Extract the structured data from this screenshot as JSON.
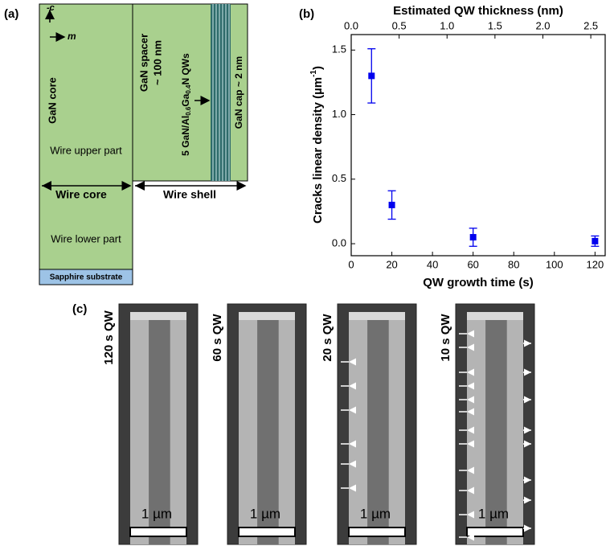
{
  "panel_a": {
    "label": "(a)",
    "axis_c": "-c",
    "axis_m": "m",
    "core": "GaN core",
    "upper": "Wire upper part",
    "wire_core": "Wire core",
    "lower": "Wire lower part",
    "substrate": "Sapphire substrate",
    "spacer": "GaN spacer",
    "spacer_thickness": "~ 100 nm",
    "qw": [
      "5 GaN/Al",
      "0.6",
      "Ga",
      "0.4",
      "N QWs"
    ],
    "cap": "GaN cap ~ 2 nm",
    "shell": "Wire shell"
  },
  "chart_data": {
    "type": "scatter",
    "label": "(b)",
    "x_label": "QW growth time (s)",
    "x2_label": "Estimated QW thickness (nm)",
    "y_label": [
      "Cracks linear density (µm",
      "-1",
      ")"
    ],
    "x": [
      10,
      20,
      60,
      120
    ],
    "series": [
      {
        "color": "#0000ee",
        "values": [
          1.3,
          0.3,
          0.05,
          0.02
        ],
        "errors": [
          0.21,
          0.11,
          0.07,
          0.04
        ]
      }
    ],
    "xlim": [
      0,
      125
    ],
    "xticks": [
      0,
      20,
      40,
      60,
      80,
      100,
      120
    ],
    "x2lim": [
      0,
      2.65
    ],
    "x2ticks": [
      {
        "value": 0,
        "label": "0.0"
      },
      0.5,
      {
        "value": 1,
        "label": "1.0"
      },
      1.5,
      {
        "value": 2,
        "label": "2.0"
      },
      2.5
    ],
    "ylim": [
      -0.093,
      1.62
    ],
    "yticks": [
      {
        "value": 0,
        "label": "0.0"
      },
      0.5,
      {
        "value": 1,
        "label": "1.0"
      },
      1.5
    ]
  },
  "panel_c": {
    "label": "(c)",
    "images": [
      {
        "label": "120 s QW",
        "scale": "1 µm"
      },
      {
        "label": "60 s QW",
        "scale": "1 µm"
      },
      {
        "label": "20 s QW",
        "scale": "1 µm"
      },
      {
        "label": "10 s QW",
        "scale": "1 µm"
      }
    ]
  }
}
